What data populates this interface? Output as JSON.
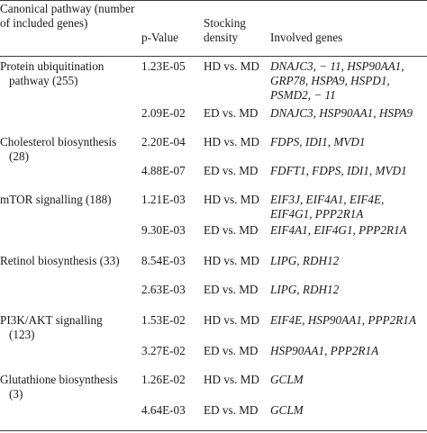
{
  "header": {
    "pathway": "Canonical pathway (number of included genes)",
    "pvalue": "p-Value",
    "stocking": "Stocking density",
    "genes": "Involved genes"
  },
  "rows": [
    {
      "pathway": "Protein ubiquitination",
      "pathway_sub": "pathway (255)",
      "pvalue": "1.23E-05",
      "stocking": "HD vs. MD",
      "genes": "DNAJC3, − 11, HSP90AA1, GRP78, HSPA9, HSPD1, PSMD2, − 11"
    },
    {
      "pathway": "",
      "pathway_sub": "",
      "pvalue": "2.09E-02",
      "stocking": "ED vs. MD",
      "genes": "DNAJC3, HSP90AA1, HSPA9"
    },
    {
      "pathway": "Cholesterol biosynthesis",
      "pathway_sub": "(28)",
      "pvalue": "2.20E-04",
      "stocking": "HD vs. MD",
      "genes": "FDPS, IDI1, MVD1"
    },
    {
      "pathway": "",
      "pathway_sub": "",
      "pvalue": "4.88E-07",
      "stocking": "ED vs. MD",
      "genes": "FDFT1, FDPS, IDI1, MVD1"
    },
    {
      "pathway": "mTOR signalling (188)",
      "pathway_sub": "",
      "pvalue": "1.21E-03",
      "stocking": "HD vs. MD",
      "genes": "EIF3J, EIF4A1, EIF4E, EIF4G1, PPP2R1A"
    },
    {
      "pathway": "",
      "pathway_sub": "",
      "pvalue": "9.30E-03",
      "stocking": "ED vs. MD",
      "genes": "EIF4A1, EIF4G1, PPP2R1A"
    },
    {
      "pathway": "Retinol biosynthesis (33)",
      "pathway_sub": "",
      "pvalue": "8.54E-03",
      "stocking": "HD vs. MD",
      "genes": "LIPG, RDH12"
    },
    {
      "pathway": "",
      "pathway_sub": "",
      "pvalue": "2.63E-03",
      "stocking": "ED vs. MD",
      "genes": "LIPG, RDH12"
    },
    {
      "pathway": "PI3K/AKT signalling",
      "pathway_sub": "(123)",
      "pvalue": "1.53E-02",
      "stocking": "HD vs. MD",
      "genes": "EIF4E, HSP90AA1, PPP2R1A"
    },
    {
      "pathway": "",
      "pathway_sub": "",
      "pvalue": "3.27E-02",
      "stocking": "ED vs. MD",
      "genes": "HSP90AA1, PPP2R1A"
    },
    {
      "pathway": "Glutathione biosynthesis",
      "pathway_sub": "(3)",
      "pvalue": "1.26E-02",
      "stocking": "HD vs. MD",
      "genes": "GCLM"
    },
    {
      "pathway": "",
      "pathway_sub": "",
      "pvalue": "4.64E-03",
      "stocking": "ED vs. MD",
      "genes": "GCLM"
    }
  ]
}
